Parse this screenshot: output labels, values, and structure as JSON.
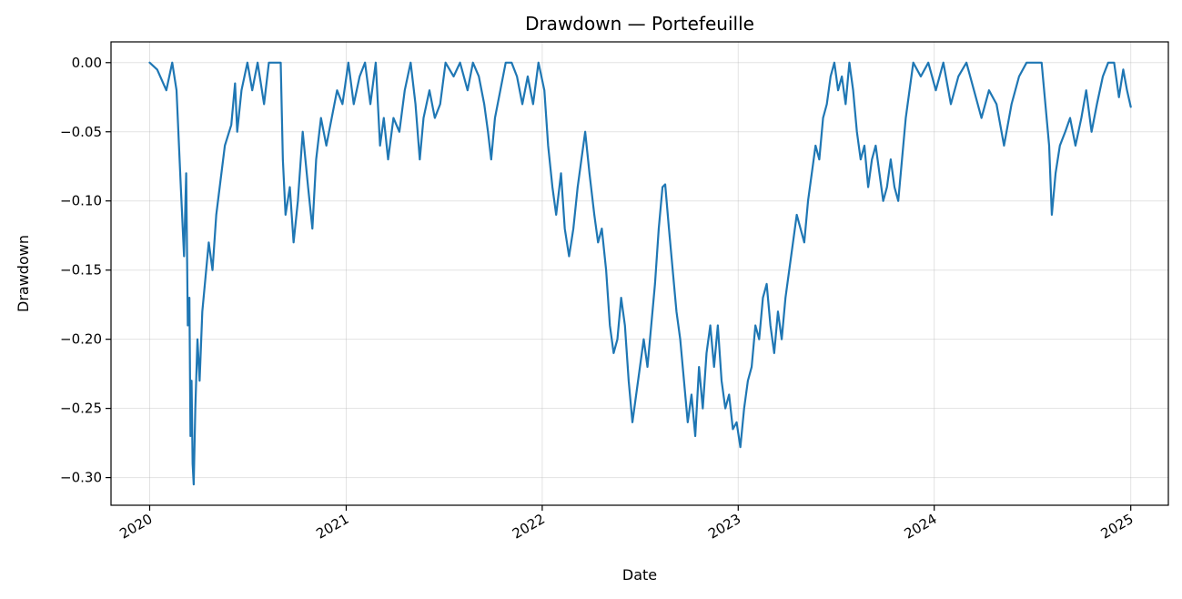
{
  "chart_data": {
    "type": "line",
    "title": "Drawdown — Portefeuille",
    "xlabel": "Date",
    "ylabel": "Drawdown",
    "grid": true,
    "legend": "none",
    "xlim": [
      "2019-10-21",
      "2025-03-12"
    ],
    "ylim": [
      -0.32,
      0.015
    ],
    "x_ticks": [
      {
        "value": "2020-01-01",
        "label": "2020"
      },
      {
        "value": "2021-01-01",
        "label": "2021"
      },
      {
        "value": "2022-01-01",
        "label": "2022"
      },
      {
        "value": "2023-01-01",
        "label": "2023"
      },
      {
        "value": "2024-01-01",
        "label": "2024"
      },
      {
        "value": "2025-01-01",
        "label": "2025"
      }
    ],
    "y_ticks": [
      {
        "value": 0.0,
        "label": "0.00"
      },
      {
        "value": -0.05,
        "label": "−0.05"
      },
      {
        "value": -0.1,
        "label": "−0.10"
      },
      {
        "value": -0.15,
        "label": "−0.15"
      },
      {
        "value": -0.2,
        "label": "−0.20"
      },
      {
        "value": -0.25,
        "label": "−0.25"
      },
      {
        "value": -0.3,
        "label": "−0.30"
      }
    ],
    "series": [
      {
        "color": "#1f77b4",
        "points": [
          [
            "2020-01-01",
            0.0
          ],
          [
            "2020-01-15",
            -0.005
          ],
          [
            "2020-02-01",
            -0.02
          ],
          [
            "2020-02-12",
            0.0
          ],
          [
            "2020-02-20",
            -0.02
          ],
          [
            "2020-02-28",
            -0.09
          ],
          [
            "2020-03-05",
            -0.14
          ],
          [
            "2020-03-09",
            -0.08
          ],
          [
            "2020-03-12",
            -0.19
          ],
          [
            "2020-03-15",
            -0.17
          ],
          [
            "2020-03-17",
            -0.27
          ],
          [
            "2020-03-19",
            -0.23
          ],
          [
            "2020-03-21",
            -0.29
          ],
          [
            "2020-03-23",
            -0.305
          ],
          [
            "2020-03-26",
            -0.25
          ],
          [
            "2020-03-30",
            -0.2
          ],
          [
            "2020-04-03",
            -0.23
          ],
          [
            "2020-04-08",
            -0.18
          ],
          [
            "2020-04-14",
            -0.155
          ],
          [
            "2020-04-20",
            -0.13
          ],
          [
            "2020-04-27",
            -0.15
          ],
          [
            "2020-05-04",
            -0.11
          ],
          [
            "2020-05-12",
            -0.085
          ],
          [
            "2020-05-20",
            -0.06
          ],
          [
            "2020-06-01",
            -0.045
          ],
          [
            "2020-06-08",
            -0.015
          ],
          [
            "2020-06-12",
            -0.05
          ],
          [
            "2020-06-20",
            -0.02
          ],
          [
            "2020-07-01",
            0.0
          ],
          [
            "2020-07-10",
            -0.02
          ],
          [
            "2020-07-20",
            0.0
          ],
          [
            "2020-08-01",
            -0.03
          ],
          [
            "2020-08-10",
            0.0
          ],
          [
            "2020-08-20",
            0.0
          ],
          [
            "2020-09-01",
            0.0
          ],
          [
            "2020-09-05",
            -0.07
          ],
          [
            "2020-09-10",
            -0.11
          ],
          [
            "2020-09-18",
            -0.09
          ],
          [
            "2020-09-25",
            -0.13
          ],
          [
            "2020-10-03",
            -0.1
          ],
          [
            "2020-10-12",
            -0.05
          ],
          [
            "2020-10-22",
            -0.09
          ],
          [
            "2020-10-30",
            -0.12
          ],
          [
            "2020-11-06",
            -0.07
          ],
          [
            "2020-11-15",
            -0.04
          ],
          [
            "2020-11-25",
            -0.06
          ],
          [
            "2020-12-05",
            -0.04
          ],
          [
            "2020-12-15",
            -0.02
          ],
          [
            "2020-12-25",
            -0.03
          ],
          [
            "2021-01-05",
            0.0
          ],
          [
            "2021-01-15",
            -0.03
          ],
          [
            "2021-01-26",
            -0.01
          ],
          [
            "2021-02-05",
            0.0
          ],
          [
            "2021-02-15",
            -0.03
          ],
          [
            "2021-02-25",
            0.0
          ],
          [
            "2021-03-05",
            -0.06
          ],
          [
            "2021-03-12",
            -0.04
          ],
          [
            "2021-03-20",
            -0.07
          ],
          [
            "2021-03-30",
            -0.04
          ],
          [
            "2021-04-10",
            -0.05
          ],
          [
            "2021-04-20",
            -0.02
          ],
          [
            "2021-05-01",
            0.0
          ],
          [
            "2021-05-10",
            -0.03
          ],
          [
            "2021-05-18",
            -0.07
          ],
          [
            "2021-05-25",
            -0.04
          ],
          [
            "2021-06-05",
            -0.02
          ],
          [
            "2021-06-15",
            -0.04
          ],
          [
            "2021-06-25",
            -0.03
          ],
          [
            "2021-07-05",
            0.0
          ],
          [
            "2021-07-20",
            -0.01
          ],
          [
            "2021-08-01",
            0.0
          ],
          [
            "2021-08-15",
            -0.02
          ],
          [
            "2021-08-25",
            0.0
          ],
          [
            "2021-09-05",
            -0.01
          ],
          [
            "2021-09-15",
            -0.03
          ],
          [
            "2021-09-22",
            -0.05
          ],
          [
            "2021-09-28",
            -0.07
          ],
          [
            "2021-10-05",
            -0.04
          ],
          [
            "2021-10-15",
            -0.02
          ],
          [
            "2021-10-25",
            0.0
          ],
          [
            "2021-11-05",
            0.0
          ],
          [
            "2021-11-15",
            -0.01
          ],
          [
            "2021-11-25",
            -0.03
          ],
          [
            "2021-12-05",
            -0.01
          ],
          [
            "2021-12-15",
            -0.03
          ],
          [
            "2021-12-25",
            0.0
          ],
          [
            "2022-01-05",
            -0.02
          ],
          [
            "2022-01-12",
            -0.06
          ],
          [
            "2022-01-20",
            -0.09
          ],
          [
            "2022-01-27",
            -0.11
          ],
          [
            "2022-02-05",
            -0.08
          ],
          [
            "2022-02-12",
            -0.12
          ],
          [
            "2022-02-20",
            -0.14
          ],
          [
            "2022-02-28",
            -0.12
          ],
          [
            "2022-03-08",
            -0.09
          ],
          [
            "2022-03-15",
            -0.07
          ],
          [
            "2022-03-22",
            -0.05
          ],
          [
            "2022-03-30",
            -0.08
          ],
          [
            "2022-04-08",
            -0.11
          ],
          [
            "2022-04-15",
            -0.13
          ],
          [
            "2022-04-22",
            -0.12
          ],
          [
            "2022-04-30",
            -0.15
          ],
          [
            "2022-05-07",
            -0.19
          ],
          [
            "2022-05-14",
            -0.21
          ],
          [
            "2022-05-21",
            -0.2
          ],
          [
            "2022-05-28",
            -0.17
          ],
          [
            "2022-06-04",
            -0.19
          ],
          [
            "2022-06-11",
            -0.23
          ],
          [
            "2022-06-18",
            -0.26
          ],
          [
            "2022-06-25",
            -0.24
          ],
          [
            "2022-07-02",
            -0.22
          ],
          [
            "2022-07-09",
            -0.2
          ],
          [
            "2022-07-16",
            -0.22
          ],
          [
            "2022-07-23",
            -0.19
          ],
          [
            "2022-07-30",
            -0.16
          ],
          [
            "2022-08-06",
            -0.12
          ],
          [
            "2022-08-13",
            -0.09
          ],
          [
            "2022-08-18",
            -0.088
          ],
          [
            "2022-08-25",
            -0.12
          ],
          [
            "2022-09-01",
            -0.15
          ],
          [
            "2022-09-08",
            -0.18
          ],
          [
            "2022-09-15",
            -0.2
          ],
          [
            "2022-09-22",
            -0.23
          ],
          [
            "2022-09-29",
            -0.26
          ],
          [
            "2022-10-06",
            -0.24
          ],
          [
            "2022-10-13",
            -0.27
          ],
          [
            "2022-10-20",
            -0.22
          ],
          [
            "2022-10-27",
            -0.25
          ],
          [
            "2022-11-03",
            -0.21
          ],
          [
            "2022-11-10",
            -0.19
          ],
          [
            "2022-11-17",
            -0.22
          ],
          [
            "2022-11-24",
            -0.19
          ],
          [
            "2022-12-01",
            -0.23
          ],
          [
            "2022-12-08",
            -0.25
          ],
          [
            "2022-12-15",
            -0.24
          ],
          [
            "2022-12-22",
            -0.265
          ],
          [
            "2022-12-29",
            -0.26
          ],
          [
            "2023-01-05",
            -0.278
          ],
          [
            "2023-01-12",
            -0.25
          ],
          [
            "2023-01-19",
            -0.23
          ],
          [
            "2023-01-26",
            -0.22
          ],
          [
            "2023-02-02",
            -0.19
          ],
          [
            "2023-02-09",
            -0.2
          ],
          [
            "2023-02-16",
            -0.17
          ],
          [
            "2023-02-23",
            -0.16
          ],
          [
            "2023-03-02",
            -0.19
          ],
          [
            "2023-03-09",
            -0.21
          ],
          [
            "2023-03-16",
            -0.18
          ],
          [
            "2023-03-23",
            -0.2
          ],
          [
            "2023-03-30",
            -0.17
          ],
          [
            "2023-04-06",
            -0.15
          ],
          [
            "2023-04-13",
            -0.13
          ],
          [
            "2023-04-20",
            -0.11
          ],
          [
            "2023-04-27",
            -0.12
          ],
          [
            "2023-05-04",
            -0.13
          ],
          [
            "2023-05-11",
            -0.1
          ],
          [
            "2023-05-18",
            -0.08
          ],
          [
            "2023-05-25",
            -0.06
          ],
          [
            "2023-06-01",
            -0.07
          ],
          [
            "2023-06-08",
            -0.04
          ],
          [
            "2023-06-15",
            -0.03
          ],
          [
            "2023-06-22",
            -0.01
          ],
          [
            "2023-06-29",
            0.0
          ],
          [
            "2023-07-06",
            -0.02
          ],
          [
            "2023-07-13",
            -0.01
          ],
          [
            "2023-07-20",
            -0.03
          ],
          [
            "2023-07-27",
            0.0
          ],
          [
            "2023-08-03",
            -0.02
          ],
          [
            "2023-08-10",
            -0.05
          ],
          [
            "2023-08-17",
            -0.07
          ],
          [
            "2023-08-24",
            -0.06
          ],
          [
            "2023-08-31",
            -0.09
          ],
          [
            "2023-09-07",
            -0.07
          ],
          [
            "2023-09-14",
            -0.06
          ],
          [
            "2023-09-21",
            -0.08
          ],
          [
            "2023-09-28",
            -0.1
          ],
          [
            "2023-10-05",
            -0.09
          ],
          [
            "2023-10-12",
            -0.07
          ],
          [
            "2023-10-19",
            -0.09
          ],
          [
            "2023-10-26",
            -0.1
          ],
          [
            "2023-11-02",
            -0.07
          ],
          [
            "2023-11-09",
            -0.04
          ],
          [
            "2023-11-16",
            -0.02
          ],
          [
            "2023-11-23",
            0.0
          ],
          [
            "2023-12-07",
            -0.01
          ],
          [
            "2023-12-21",
            0.0
          ],
          [
            "2024-01-04",
            -0.02
          ],
          [
            "2024-01-18",
            0.0
          ],
          [
            "2024-02-01",
            -0.03
          ],
          [
            "2024-02-15",
            -0.01
          ],
          [
            "2024-03-01",
            0.0
          ],
          [
            "2024-03-15",
            -0.02
          ],
          [
            "2024-03-29",
            -0.04
          ],
          [
            "2024-04-12",
            -0.02
          ],
          [
            "2024-04-26",
            -0.03
          ],
          [
            "2024-05-10",
            -0.06
          ],
          [
            "2024-05-24",
            -0.03
          ],
          [
            "2024-06-07",
            -0.01
          ],
          [
            "2024-06-21",
            0.0
          ],
          [
            "2024-07-05",
            0.0
          ],
          [
            "2024-07-19",
            0.0
          ],
          [
            "2024-07-26",
            -0.03
          ],
          [
            "2024-08-02",
            -0.06
          ],
          [
            "2024-08-07",
            -0.11
          ],
          [
            "2024-08-14",
            -0.08
          ],
          [
            "2024-08-22",
            -0.06
          ],
          [
            "2024-09-01",
            -0.05
          ],
          [
            "2024-09-10",
            -0.04
          ],
          [
            "2024-09-20",
            -0.06
          ],
          [
            "2024-10-01",
            -0.04
          ],
          [
            "2024-10-10",
            -0.02
          ],
          [
            "2024-10-20",
            -0.05
          ],
          [
            "2024-10-30",
            -0.03
          ],
          [
            "2024-11-10",
            -0.01
          ],
          [
            "2024-11-20",
            0.0
          ],
          [
            "2024-12-01",
            0.0
          ],
          [
            "2024-12-10",
            -0.025
          ],
          [
            "2024-12-18",
            -0.005
          ],
          [
            "2024-12-25",
            -0.02
          ],
          [
            "2025-01-01",
            -0.032
          ]
        ]
      }
    ]
  }
}
